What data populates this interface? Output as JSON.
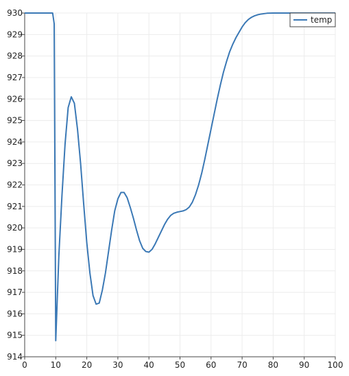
{
  "chart_data": {
    "type": "line",
    "title": "",
    "xlabel": "",
    "ylabel": "",
    "xlim": [
      0,
      100
    ],
    "ylim": [
      914,
      930
    ],
    "x_ticks": [
      0,
      10,
      20,
      30,
      40,
      50,
      60,
      70,
      80,
      90,
      100
    ],
    "y_ticks": [
      914,
      915,
      916,
      917,
      918,
      919,
      920,
      921,
      922,
      923,
      924,
      925,
      926,
      927,
      928,
      929,
      930
    ],
    "grid": true,
    "legend": {
      "position": "top-right",
      "entries": [
        "temp"
      ]
    },
    "series": [
      {
        "name": "temp",
        "color": "#3a78b5",
        "points": [
          [
            0,
            930
          ],
          [
            9,
            930
          ],
          [
            9.5,
            929.5
          ],
          [
            10,
            914.75
          ],
          [
            11,
            918.7
          ],
          [
            12,
            921.5
          ],
          [
            13,
            923.9
          ],
          [
            14,
            925.6
          ],
          [
            15,
            926.1
          ],
          [
            16,
            925.8
          ],
          [
            17,
            924.6
          ],
          [
            18,
            923
          ],
          [
            19,
            921.1
          ],
          [
            20,
            919.3
          ],
          [
            21,
            917.9
          ],
          [
            22,
            916.85
          ],
          [
            23,
            916.45
          ],
          [
            24,
            916.5
          ],
          [
            25,
            917.1
          ],
          [
            26,
            917.9
          ],
          [
            27,
            918.9
          ],
          [
            28,
            919.9
          ],
          [
            29,
            920.8
          ],
          [
            30,
            921.35
          ],
          [
            31,
            921.65
          ],
          [
            32,
            921.65
          ],
          [
            33,
            921.4
          ],
          [
            34,
            920.95
          ],
          [
            35,
            920.45
          ],
          [
            36,
            919.9
          ],
          [
            37,
            919.4
          ],
          [
            38,
            919.05
          ],
          [
            39,
            918.9
          ],
          [
            40,
            918.87
          ],
          [
            41,
            919
          ],
          [
            42,
            919.25
          ],
          [
            43,
            919.55
          ],
          [
            44,
            919.85
          ],
          [
            45,
            920.15
          ],
          [
            46,
            920.4
          ],
          [
            47,
            920.58
          ],
          [
            48,
            920.68
          ],
          [
            49,
            920.73
          ],
          [
            50,
            920.76
          ],
          [
            51,
            920.79
          ],
          [
            52,
            920.85
          ],
          [
            53,
            920.97
          ],
          [
            54,
            921.2
          ],
          [
            55,
            921.55
          ],
          [
            56,
            922
          ],
          [
            57,
            922.55
          ],
          [
            58,
            923.2
          ],
          [
            59,
            923.9
          ],
          [
            60,
            924.6
          ],
          [
            61,
            925.3
          ],
          [
            62,
            926
          ],
          [
            63,
            926.65
          ],
          [
            64,
            927.25
          ],
          [
            65,
            927.75
          ],
          [
            66,
            928.2
          ],
          [
            67,
            928.55
          ],
          [
            68,
            928.85
          ],
          [
            69,
            929.1
          ],
          [
            70,
            929.35
          ],
          [
            71,
            929.55
          ],
          [
            72,
            929.7
          ],
          [
            73,
            929.8
          ],
          [
            74,
            929.87
          ],
          [
            75,
            929.92
          ],
          [
            76,
            929.95
          ],
          [
            77,
            929.97
          ],
          [
            78,
            929.99
          ],
          [
            80,
            930
          ],
          [
            90,
            930
          ],
          [
            100,
            930
          ]
        ]
      }
    ]
  }
}
